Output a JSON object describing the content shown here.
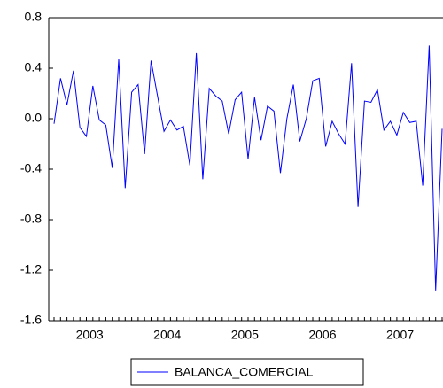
{
  "chart_data": {
    "type": "line",
    "categories": [
      null,
      null,
      null,
      null,
      null,
      null,
      "2003",
      null,
      null,
      null,
      null,
      null,
      null,
      null,
      null,
      null,
      null,
      null,
      "2004",
      null,
      null,
      null,
      null,
      null,
      null,
      null,
      null,
      null,
      null,
      null,
      "2005",
      null,
      null,
      null,
      null,
      null,
      null,
      null,
      null,
      null,
      null,
      null,
      "2006",
      null,
      null,
      null,
      null,
      null,
      null,
      null,
      null,
      null,
      null,
      null,
      "2007",
      null,
      null,
      null,
      null,
      null,
      null
    ],
    "series": [
      {
        "name": "BALANCA_COMERCIAL",
        "color": "#0000ff",
        "values": [
          -0.04,
          0.32,
          0.11,
          0.38,
          -0.07,
          -0.14,
          0.26,
          -0.01,
          -0.05,
          -0.39,
          0.47,
          -0.55,
          0.21,
          0.27,
          -0.28,
          0.46,
          0.18,
          -0.1,
          -0.01,
          -0.09,
          -0.06,
          -0.37,
          0.52,
          -0.48,
          0.24,
          0.18,
          0.14,
          -0.12,
          0.15,
          0.21,
          -0.32,
          0.17,
          -0.17,
          0.1,
          0.06,
          -0.43,
          0.0,
          0.27,
          -0.18,
          0.0,
          0.3,
          0.32,
          -0.22,
          -0.02,
          -0.12,
          -0.2,
          0.44,
          -0.7,
          0.14,
          0.13,
          0.23,
          -0.09,
          -0.02,
          -0.13,
          0.05,
          -0.03,
          -0.02,
          -0.53,
          0.58,
          -1.36,
          -0.08
        ]
      }
    ],
    "ylim": [
      -1.6,
      0.8
    ],
    "yticks": [
      -1.6,
      -1.2,
      -0.8,
      -0.4,
      {
        "value": 0,
        "label": "0.0"
      },
      0.4,
      0.8
    ],
    "legend": "bottom"
  }
}
